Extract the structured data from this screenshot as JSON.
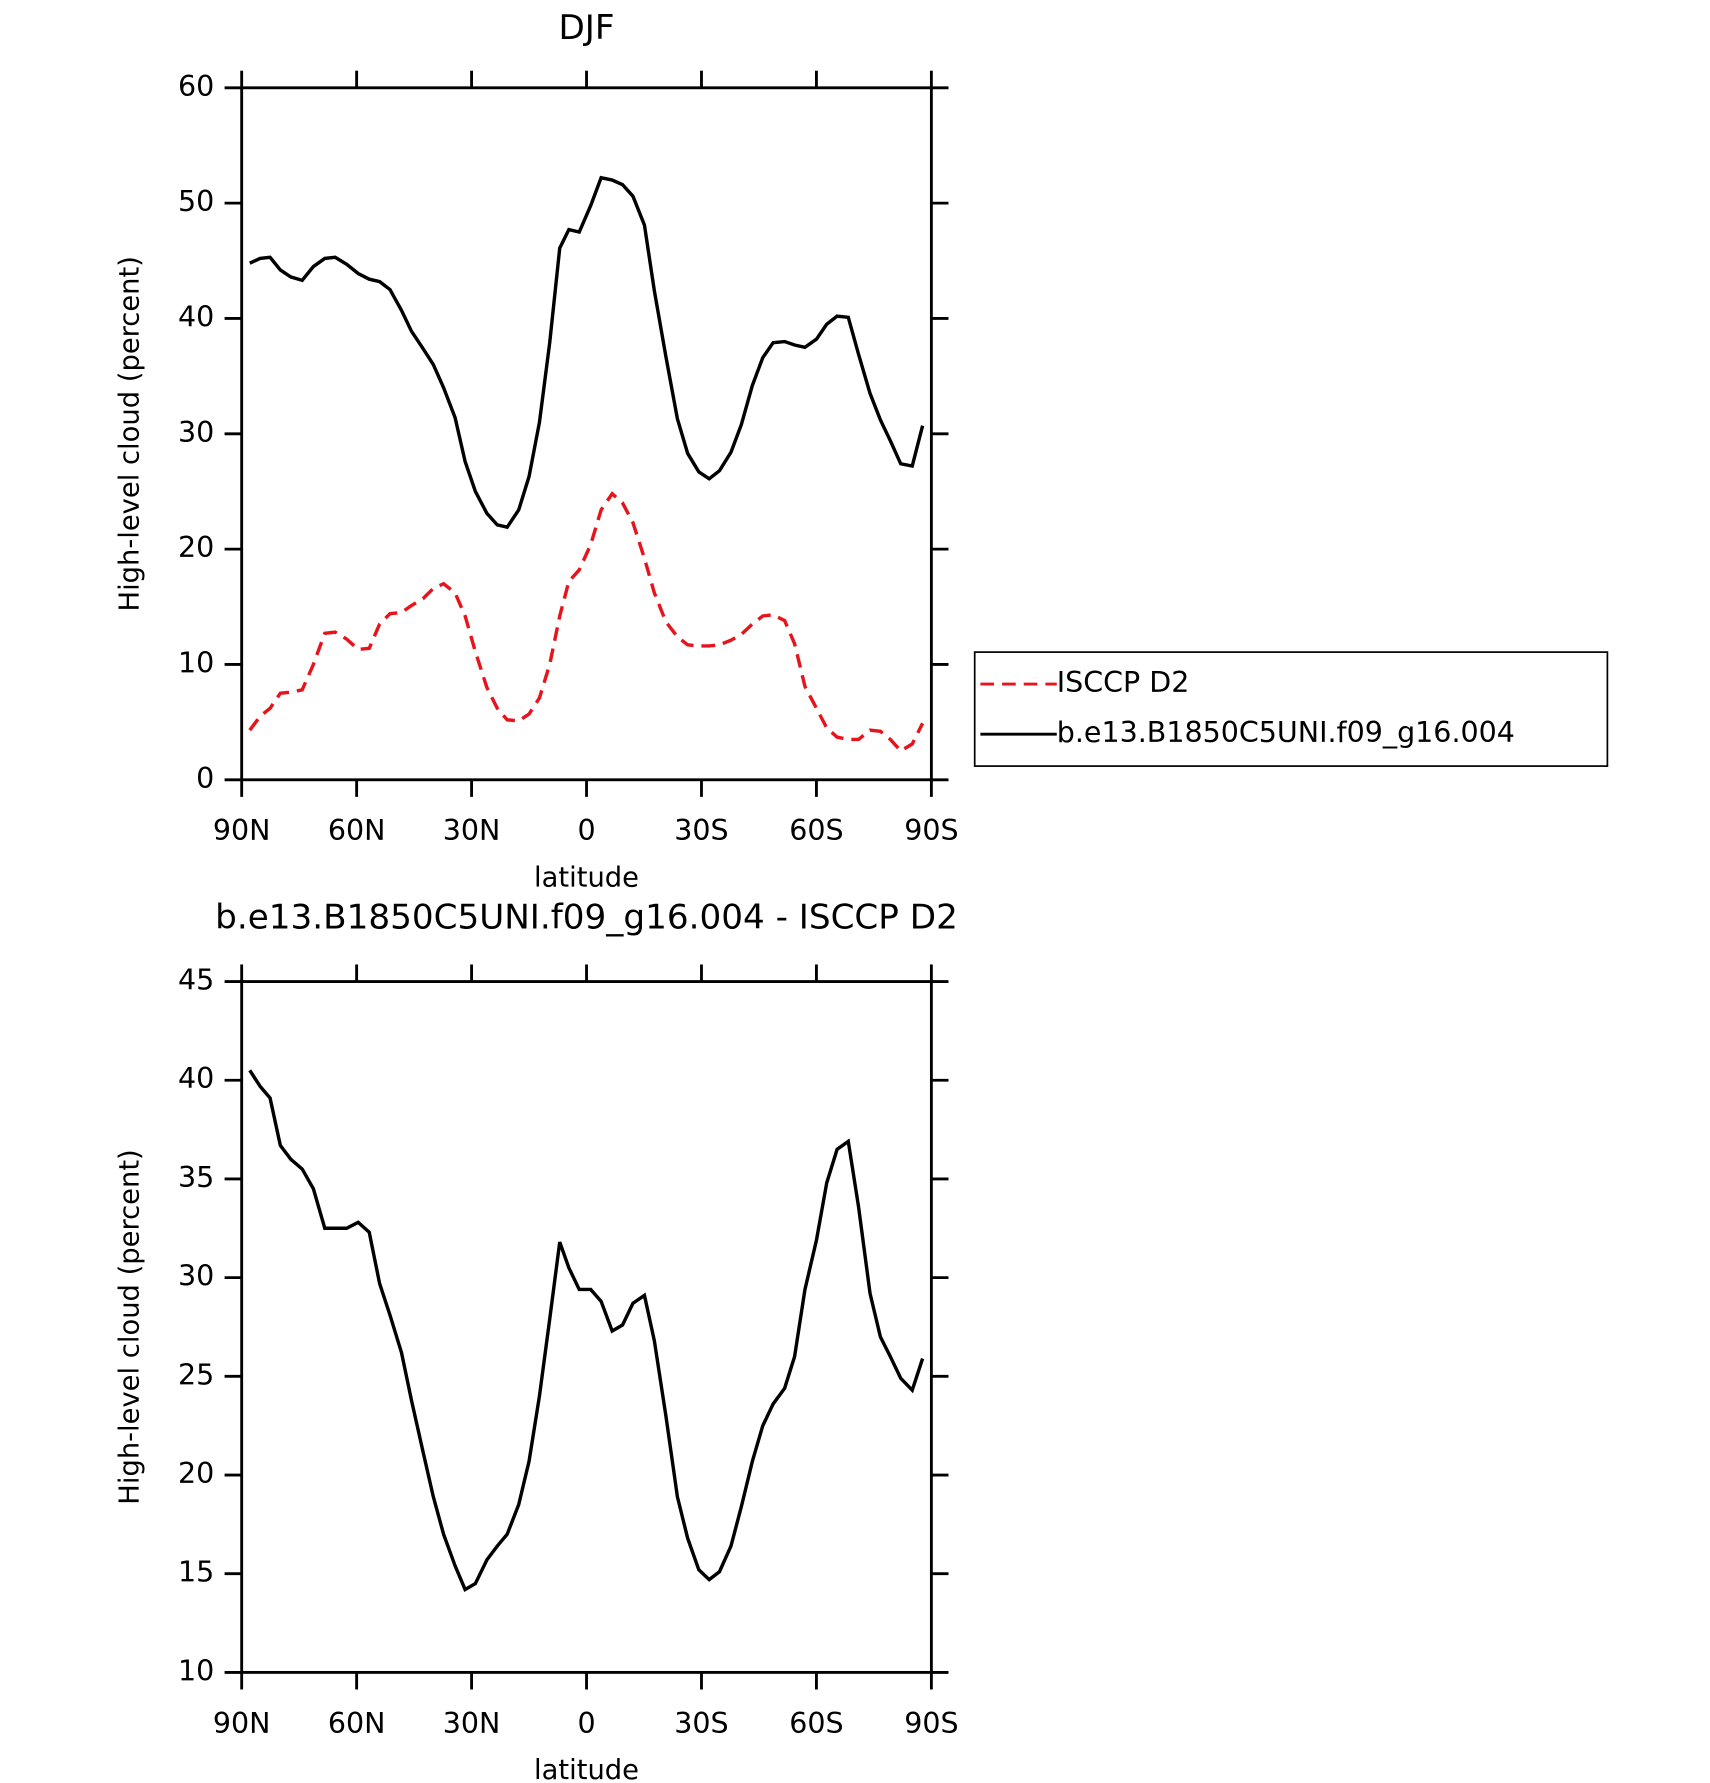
{
  "chart_data": [
    {
      "type": "line",
      "title": "DJF",
      "xlabel": "latitude",
      "ylabel": "High-level cloud (percent)",
      "x": [
        87.9,
        85.2,
        82.6,
        79.9,
        77.2,
        74.2,
        71.3,
        68.3,
        65.6,
        62.6,
        59.6,
        56.7,
        54.0,
        51.3,
        48.3,
        45.7,
        42.7,
        40.0,
        37.3,
        34.3,
        31.7,
        29.0,
        26.0,
        23.3,
        20.7,
        17.7,
        15.0,
        12.3,
        9.6,
        7.0,
        4.6,
        1.9,
        -1.1,
        -3.8,
        -6.7,
        -9.4,
        -12.1,
        -15.1,
        -17.7,
        -20.7,
        -23.7,
        -26.4,
        -29.3,
        -32.0,
        -34.7,
        -37.7,
        -40.4,
        -43.3,
        -46.0,
        -48.7,
        -51.7,
        -54.3,
        -57.0,
        -60.0,
        -62.7,
        -65.4,
        -68.3,
        -71.0,
        -74.0,
        -76.7,
        -79.3,
        -82.0,
        -85.0,
        -87.7
      ],
      "series": [
        {
          "name": "ISCCP D2",
          "color": "#e8141c",
          "dash": true,
          "values": [
            4.3,
            5.5,
            6.2,
            7.5,
            7.6,
            7.8,
            10.0,
            12.7,
            12.8,
            12.2,
            11.3,
            11.4,
            13.5,
            14.4,
            14.5,
            15.1,
            15.7,
            16.6,
            17.0,
            16.2,
            14.2,
            11.1,
            8.0,
            6.2,
            5.2,
            5.1,
            5.7,
            7.1,
            10.0,
            14.2,
            17.2,
            18.2,
            20.4,
            23.4,
            24.8,
            24.0,
            22.3,
            19.2,
            16.2,
            13.7,
            12.4,
            11.7,
            11.6,
            11.6,
            11.7,
            12.1,
            12.6,
            13.5,
            14.2,
            14.3,
            13.8,
            11.8,
            8.1,
            6.2,
            4.5,
            3.7,
            3.5,
            3.5,
            4.3,
            4.2,
            3.5,
            2.5,
            3.1,
            4.9
          ]
        },
        {
          "name": "b.e13.B1850C5UNI.f09_g16.004",
          "color": "#000000",
          "dash": false,
          "values": [
            44.8,
            45.2,
            45.3,
            44.2,
            43.6,
            43.3,
            44.5,
            45.2,
            45.3,
            44.7,
            43.9,
            43.4,
            43.2,
            42.5,
            40.7,
            38.9,
            37.4,
            36.0,
            34.0,
            31.4,
            27.6,
            25.0,
            23.1,
            22.1,
            21.9,
            23.4,
            26.3,
            31.0,
            37.9,
            46.1,
            47.7,
            47.5,
            49.8,
            52.2,
            52.0,
            51.6,
            50.6,
            48.1,
            42.4,
            36.7,
            31.3,
            28.3,
            26.7,
            26.1,
            26.8,
            28.4,
            30.8,
            34.2,
            36.6,
            37.9,
            38.0,
            37.7,
            37.5,
            38.2,
            39.5,
            40.2,
            40.1,
            36.9,
            33.5,
            31.2,
            29.4,
            27.4,
            27.2,
            30.7
          ]
        }
      ],
      "xlim": [
        90,
        -90
      ],
      "ylim": [
        0,
        60
      ],
      "xticks": [
        {
          "value": 90,
          "label": "90N"
        },
        {
          "value": 60,
          "label": "60N"
        },
        {
          "value": 30,
          "label": "30N"
        },
        0,
        {
          "value": -30,
          "label": "30S"
        },
        {
          "value": -60,
          "label": "60S"
        },
        {
          "value": -90,
          "label": "90S"
        }
      ],
      "yticks": [
        0,
        10,
        20,
        30,
        40,
        50,
        60
      ],
      "legend": "outside-right"
    },
    {
      "type": "line",
      "title": "b.e13.B1850C5UNI.f09_g16.004 - ISCCP D2",
      "xlabel": "latitude",
      "ylabel": "High-level cloud (percent)",
      "x": [
        87.9,
        85.2,
        82.6,
        79.9,
        77.2,
        74.2,
        71.3,
        68.3,
        65.6,
        62.6,
        59.6,
        56.7,
        54.0,
        51.3,
        48.3,
        45.7,
        42.7,
        40.0,
        37.3,
        34.3,
        31.7,
        29.0,
        26.0,
        23.3,
        20.7,
        17.7,
        15.0,
        12.3,
        9.6,
        7.0,
        4.6,
        1.9,
        -1.1,
        -3.8,
        -6.7,
        -9.4,
        -12.1,
        -15.1,
        -17.7,
        -20.7,
        -23.7,
        -26.4,
        -29.3,
        -32.0,
        -34.7,
        -37.7,
        -40.4,
        -43.3,
        -46.0,
        -48.7,
        -51.7,
        -54.3,
        -57.0,
        -60.0,
        -62.7,
        -65.4,
        -68.3,
        -71.0,
        -74.0,
        -76.7,
        -79.3,
        -82.0,
        -85.0,
        -87.7
      ],
      "series": [
        {
          "color": "#000000",
          "dash": false,
          "values": [
            40.5,
            39.7,
            39.1,
            36.7,
            36.0,
            35.5,
            34.5,
            32.5,
            32.5,
            32.5,
            32.8,
            32.3,
            29.7,
            28.1,
            26.2,
            23.8,
            21.2,
            18.9,
            17.0,
            15.4,
            14.2,
            14.5,
            15.7,
            16.4,
            17.0,
            18.5,
            20.7,
            24.0,
            27.9,
            31.8,
            30.5,
            29.4,
            29.4,
            28.8,
            27.3,
            27.6,
            28.7,
            29.1,
            26.8,
            23.0,
            18.9,
            16.8,
            15.2,
            14.7,
            15.1,
            16.4,
            18.4,
            20.7,
            22.5,
            23.6,
            24.4,
            26.0,
            29.4,
            31.9,
            34.8,
            36.5,
            36.9,
            33.6,
            29.2,
            27.0,
            26.0,
            24.9,
            24.3,
            25.9
          ]
        }
      ],
      "xlim": [
        90,
        -90
      ],
      "ylim": [
        10,
        45
      ],
      "xticks": [
        {
          "value": 90,
          "label": "90N"
        },
        {
          "value": 60,
          "label": "60N"
        },
        {
          "value": 30,
          "label": "30N"
        },
        0,
        {
          "value": -30,
          "label": "30S"
        },
        {
          "value": -60,
          "label": "60S"
        },
        {
          "value": -90,
          "label": "90S"
        }
      ],
      "yticks": [
        10,
        15,
        20,
        25,
        30,
        35,
        40,
        45
      ]
    }
  ]
}
